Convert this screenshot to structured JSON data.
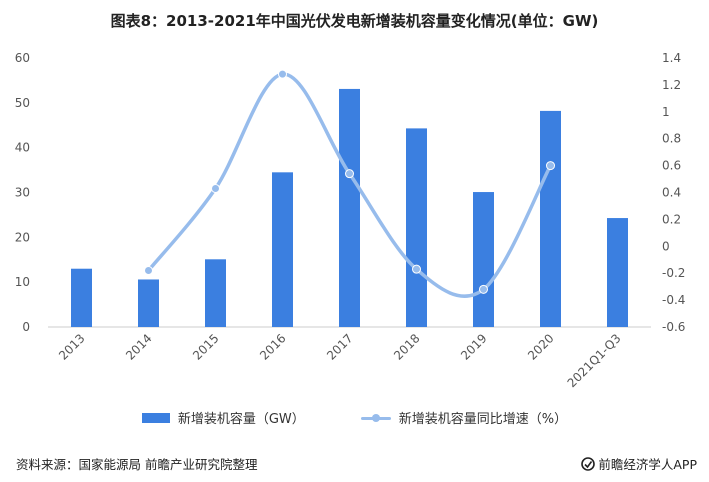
{
  "title": "图表8：2013-2021年中国光伏发电新增装机容量变化情况(单位：GW)",
  "source": "资料来源：国家能源局 前瞻产业研究院整理",
  "brand": "前瞻经济学人APP",
  "colors": {
    "bar": "#3b7fe0",
    "line": "#97bcec",
    "axis": "#cccccc"
  },
  "chart_data": {
    "type": "bar",
    "categories": [
      "2013",
      "2014",
      "2015",
      "2016",
      "2017",
      "2018",
      "2019",
      "2020",
      "2021Q1-Q3"
    ],
    "series": [
      {
        "name": "新增装机容量（GW）",
        "chart_type": "bar",
        "axis": "left",
        "values": [
          13.0,
          10.6,
          15.1,
          34.5,
          53.1,
          44.3,
          30.1,
          48.2,
          24.3
        ]
      },
      {
        "name": "新增装机容量同比增速（%）",
        "chart_type": "line",
        "axis": "right",
        "values": [
          null,
          -0.18,
          0.43,
          1.28,
          0.54,
          -0.17,
          -0.32,
          0.6,
          null
        ]
      }
    ],
    "left_axis": {
      "min": 0,
      "max": 60,
      "step": 10,
      "ticks": [
        "0",
        "10",
        "20",
        "30",
        "40",
        "50",
        "60"
      ]
    },
    "right_axis": {
      "min": -0.6,
      "max": 1.4,
      "step": 0.2,
      "ticks": [
        "-0.6",
        "-0.4",
        "-0.2",
        "0",
        "0.2",
        "0.4",
        "0.6",
        "0.8",
        "1",
        "1.2",
        "1.4"
      ]
    },
    "grid": false,
    "legend_position": "bottom"
  }
}
